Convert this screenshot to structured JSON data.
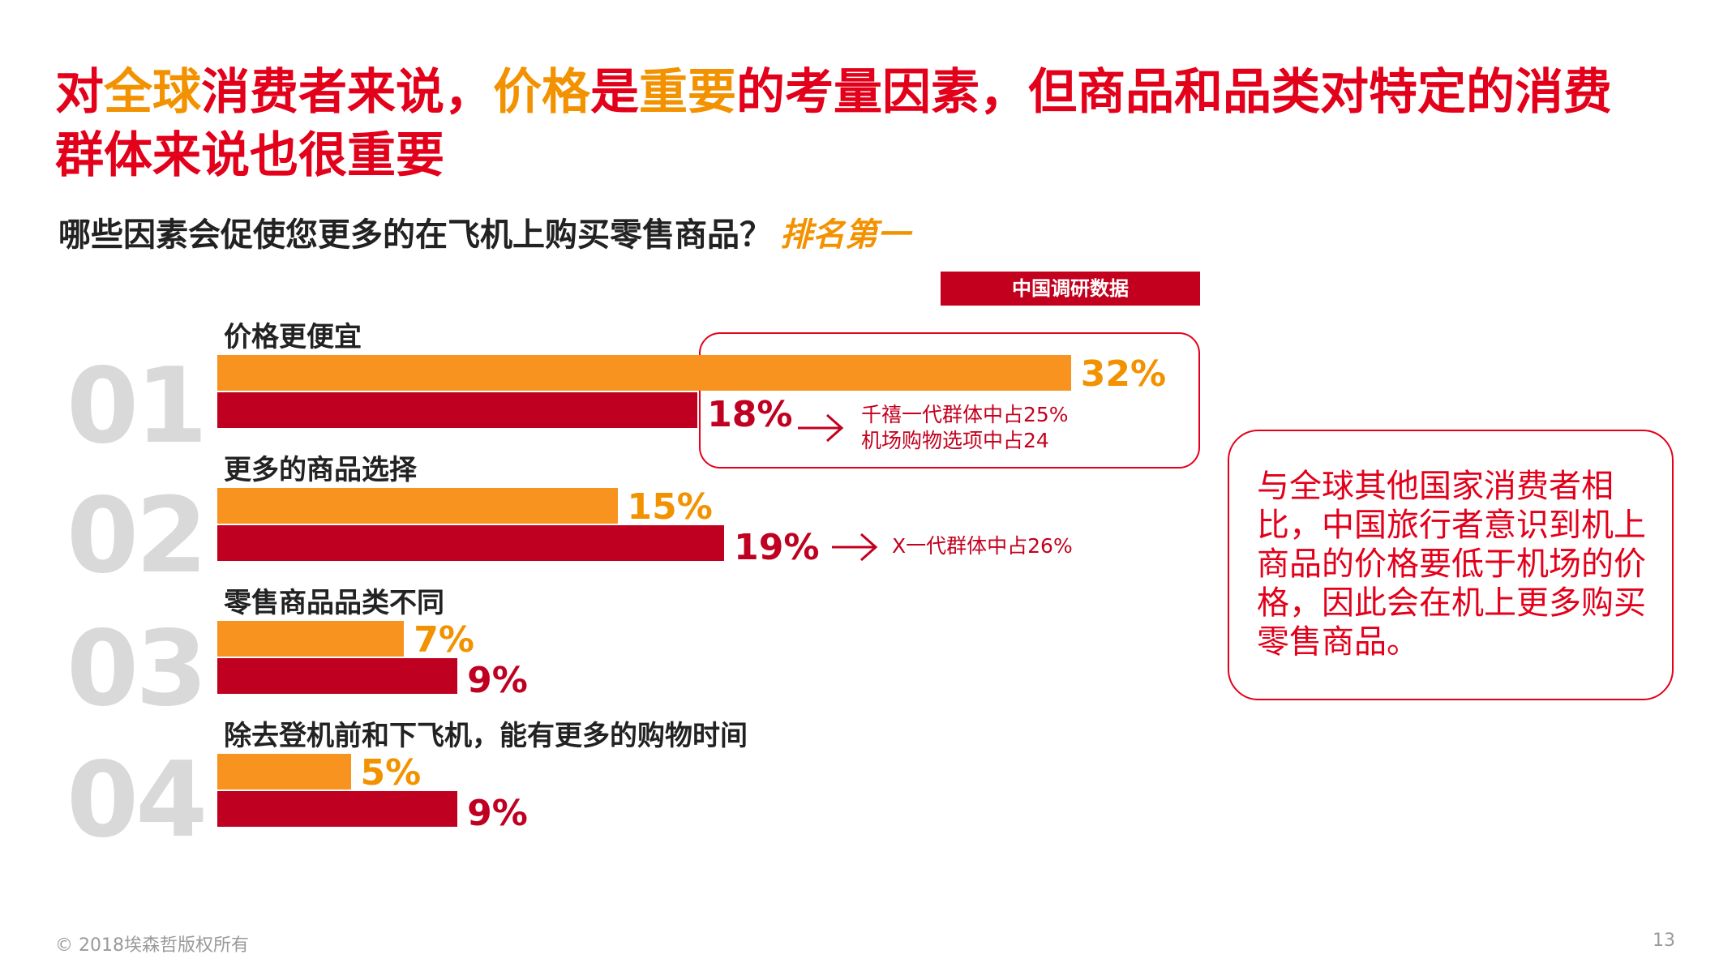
{
  "title": {
    "line1": [
      {
        "text": "对",
        "color": "red"
      },
      {
        "text": "全球",
        "color": "orange"
      },
      {
        "text": "消费者来说，",
        "color": "red"
      },
      {
        "text": "价格",
        "color": "orange"
      },
      {
        "text": "是",
        "color": "red"
      },
      {
        "text": "重要",
        "color": "orange"
      },
      {
        "text": "的考量因素，但商品和品类对特定的消费",
        "color": "red"
      }
    ],
    "line2": [
      {
        "text": "群体来说也很重要",
        "color": "red"
      }
    ]
  },
  "question": {
    "text": "哪些因素会促使您更多的在飞机上购买零售商品？",
    "highlight": "排名第一"
  },
  "legend_badge": "中国调研数据",
  "colors": {
    "red": "#e3001b",
    "orange": "#f39200",
    "global_bar": "#f7931e",
    "china_bar": "#bf0021",
    "rank_gray": "#d9d9d9"
  },
  "chart_data": {
    "type": "bar",
    "orientation": "horizontal",
    "categories": [
      {
        "rank": "01",
        "label": "价格更便宜"
      },
      {
        "rank": "02",
        "label": "更多的商品选择"
      },
      {
        "rank": "03",
        "label": "零售商品品类不同"
      },
      {
        "rank": "04",
        "label": "除去登机前和下飞机，能有更多的购物时间"
      }
    ],
    "series": [
      {
        "values": [
          32,
          15,
          7,
          5
        ],
        "labels": [
          "32%",
          "15%",
          "7%",
          "5%"
        ],
        "color": "#f7931e"
      },
      {
        "values": [
          18,
          19,
          9,
          9
        ],
        "labels": [
          "18%",
          "19%",
          "9%",
          "9%"
        ],
        "color": "#bf0021"
      }
    ]
  },
  "notes": {
    "row1": [
      "千禧一代群体中占25%",
      "机场购物选项中占24"
    ],
    "row2": [
      "X一代群体中占26%"
    ]
  },
  "side_note": "与全球其他国家消费者相比，中国旅行者意识到机上商品的价格要低于机场的价格，因此会在机上更多购买零售商品。",
  "footer": {
    "copyright": "© 2018埃森哲版权所有",
    "page": "13"
  }
}
